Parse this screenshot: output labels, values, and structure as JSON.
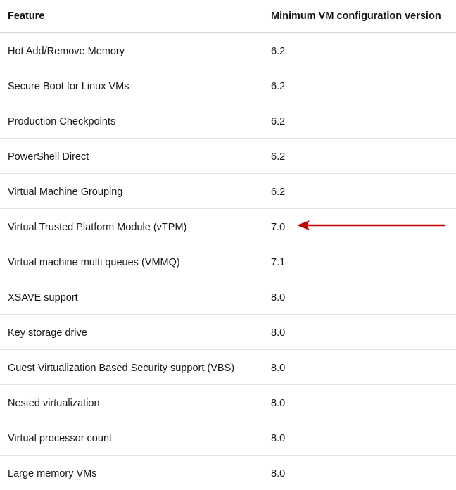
{
  "table": {
    "headers": {
      "feature": "Feature",
      "version": "Minimum VM configuration version"
    },
    "rows": [
      {
        "feature": "Hot Add/Remove Memory",
        "version": "6.2"
      },
      {
        "feature": "Secure Boot for Linux VMs",
        "version": "6.2"
      },
      {
        "feature": "Production Checkpoints",
        "version": "6.2"
      },
      {
        "feature": "PowerShell Direct",
        "version": "6.2"
      },
      {
        "feature": "Virtual Machine Grouping",
        "version": "6.2"
      },
      {
        "feature": "Virtual Trusted Platform Module (vTPM)",
        "version": "7.0"
      },
      {
        "feature": "Virtual machine multi queues (VMMQ)",
        "version": "7.1"
      },
      {
        "feature": "XSAVE support",
        "version": "8.0"
      },
      {
        "feature": "Key storage drive",
        "version": "8.0"
      },
      {
        "feature": "Guest Virtualization Based Security support (VBS)",
        "version": "8.0"
      },
      {
        "feature": "Nested virtualization",
        "version": "8.0"
      },
      {
        "feature": "Virtual processor count",
        "version": "8.0"
      },
      {
        "feature": "Large memory VMs",
        "version": "8.0"
      }
    ]
  },
  "annotation": {
    "icon": "red-arrow-icon",
    "color": "#c00000"
  }
}
